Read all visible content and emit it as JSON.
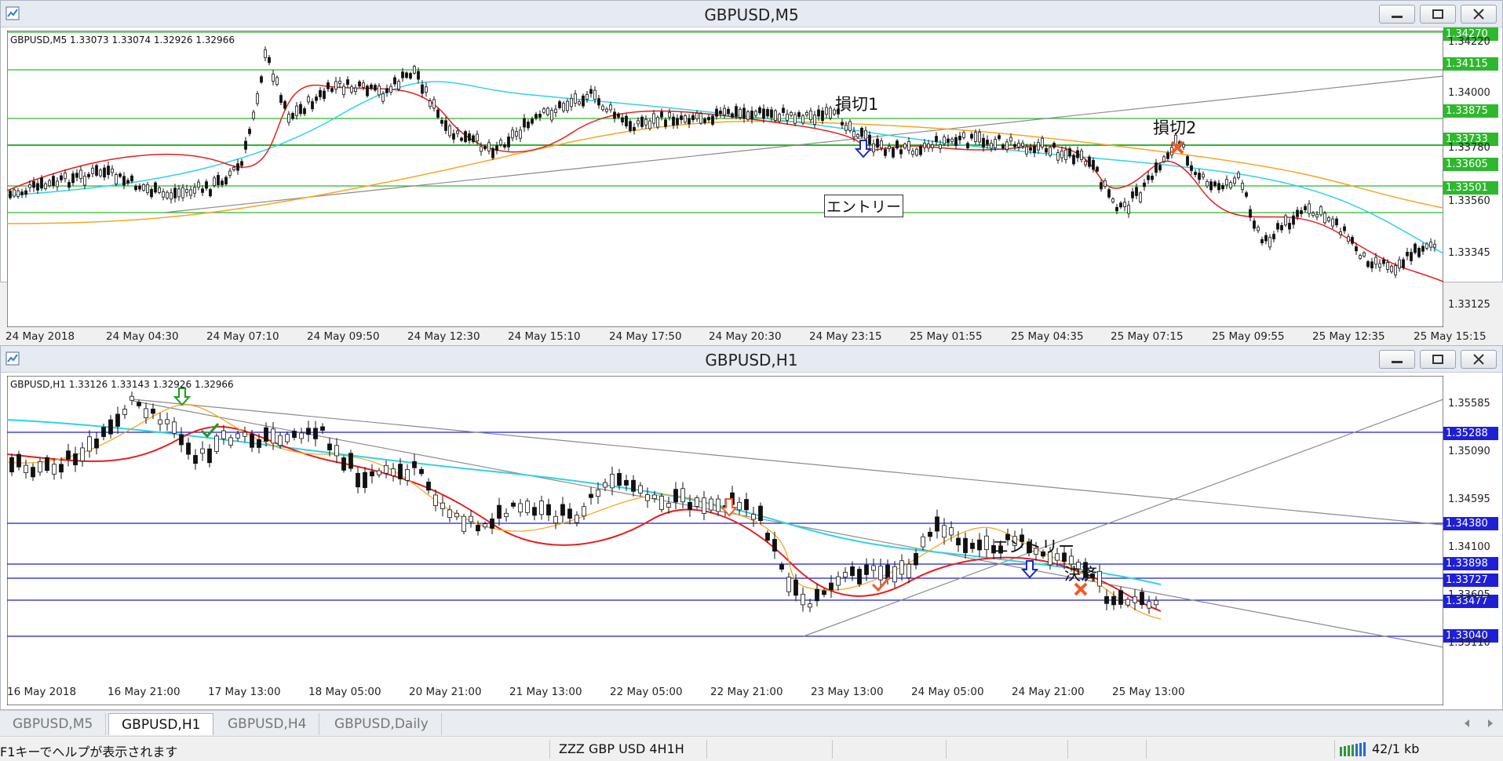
{
  "top_window": {
    "title": "GBPUSD,M5",
    "info_line": "GBPUSD,M5  1.33073 1.33074 1.32926 1.32966",
    "price_boxes": [
      "1.34270",
      "1.34115",
      "1.33875",
      "1.33733",
      "1.33605",
      "1.33501"
    ],
    "price_axis": [
      "1.34220",
      "1.34000",
      "1.33780",
      "1.33560",
      "1.33345",
      "1.33125"
    ],
    "time_axis": [
      "24 May 2018",
      "24 May 04:30",
      "24 May 07:10",
      "24 May 09:50",
      "24 May 12:30",
      "24 May 15:10",
      "24 May 17:50",
      "24 May 20:30",
      "24 May 23:15",
      "25 May 01:55",
      "25 May 04:35",
      "25 May 07:15",
      "25 May 09:55",
      "25 May 12:35",
      "25 May 15:15"
    ],
    "annotations": {
      "stop1": "損切1",
      "stop2": "損切2",
      "entry": "エントリー"
    }
  },
  "bottom_window": {
    "title": "GBPUSD,H1",
    "info_line": "GBPUSD,H1  1.33126 1.33143 1.32926 1.32966",
    "price_boxes": [
      "1.35288",
      "1.34380",
      "1.33898",
      "1.33727",
      "1.33477",
      "1.33040"
    ],
    "price_axis": [
      "1.35585",
      "1.35090",
      "1.34595",
      "1.34100",
      "1.33605",
      "1.33110"
    ],
    "time_axis": [
      "16 May 2018",
      "16 May 21:00",
      "17 May 13:00",
      "18 May 05:00",
      "20 May 21:00",
      "21 May 13:00",
      "22 May 05:00",
      "22 May 21:00",
      "23 May 13:00",
      "24 May 05:00",
      "24 May 21:00",
      "25 May 13:00"
    ],
    "annotations": {
      "entry": "エントリー",
      "settle": "決済"
    }
  },
  "tabs": [
    "GBPUSD,M5",
    "GBPUSD,H1",
    "GBPUSD,H4",
    "GBPUSD,Daily"
  ],
  "active_tab": 1,
  "status": {
    "help": "F1キーでヘルプが表示されます",
    "profile": "ZZZ GBP USD 4H1H",
    "traffic": "42/1 kb"
  },
  "colors": {
    "m5_levels": "#2eb82e",
    "h1_levels": "#1f1fd6",
    "ma_red": "#e81e1e",
    "ma_orange": "#f5a623",
    "ma_cyan": "#2ed3e6",
    "trend": "#8a8a8a"
  },
  "icons": [
    "chart-app-icon",
    "minimize-icon",
    "maximize-icon",
    "close-icon",
    "cross-icon",
    "arrow-down-icon",
    "check-icon",
    "signal-bars-icon",
    "scroll-left-icon",
    "scroll-right-icon"
  ]
}
